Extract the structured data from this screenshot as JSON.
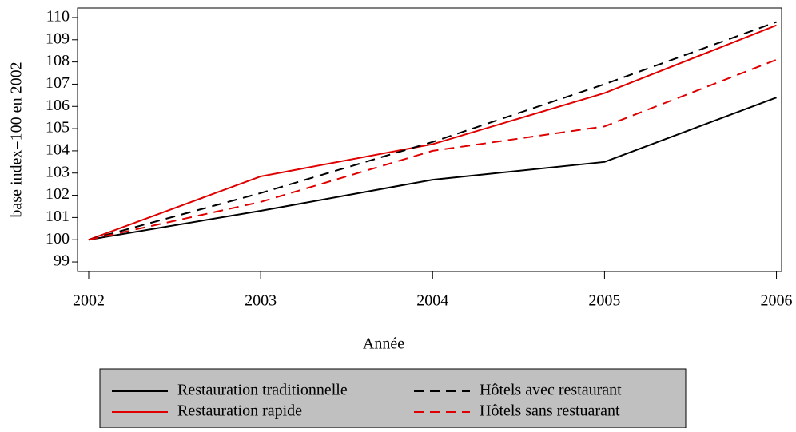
{
  "chart_data": {
    "type": "line",
    "x": [
      2002,
      2003,
      2004,
      2005,
      2006
    ],
    "xlim": [
      2001.935,
      2006.03
    ],
    "xticks": [
      2002,
      2003,
      2004,
      2005,
      2006
    ],
    "ylim": [
      98.57,
      110.43
    ],
    "yticks": [
      99,
      100,
      101,
      102,
      103,
      104,
      105,
      106,
      107,
      108,
      109,
      110
    ],
    "xlabel": "Année",
    "ylabel": "base index=100 en 2002",
    "series": [
      {
        "name": "Restauration traditionnelle",
        "color": "#000000",
        "dash": false,
        "values": [
          100,
          101.3,
          102.7,
          103.5,
          106.4
        ]
      },
      {
        "name": "Restauration rapide",
        "color": "#e00000",
        "dash": false,
        "values": [
          100,
          102.85,
          104.3,
          106.6,
          109.65
        ]
      },
      {
        "name": "Hôtels avec restaurant",
        "color": "#000000",
        "dash": true,
        "values": [
          100,
          102.1,
          104.4,
          107.0,
          109.8
        ]
      },
      {
        "name": "Hôtels sans restuarant",
        "color": "#e00000",
        "dash": true,
        "values": [
          100,
          101.7,
          104.0,
          105.1,
          108.1
        ]
      }
    ]
  }
}
